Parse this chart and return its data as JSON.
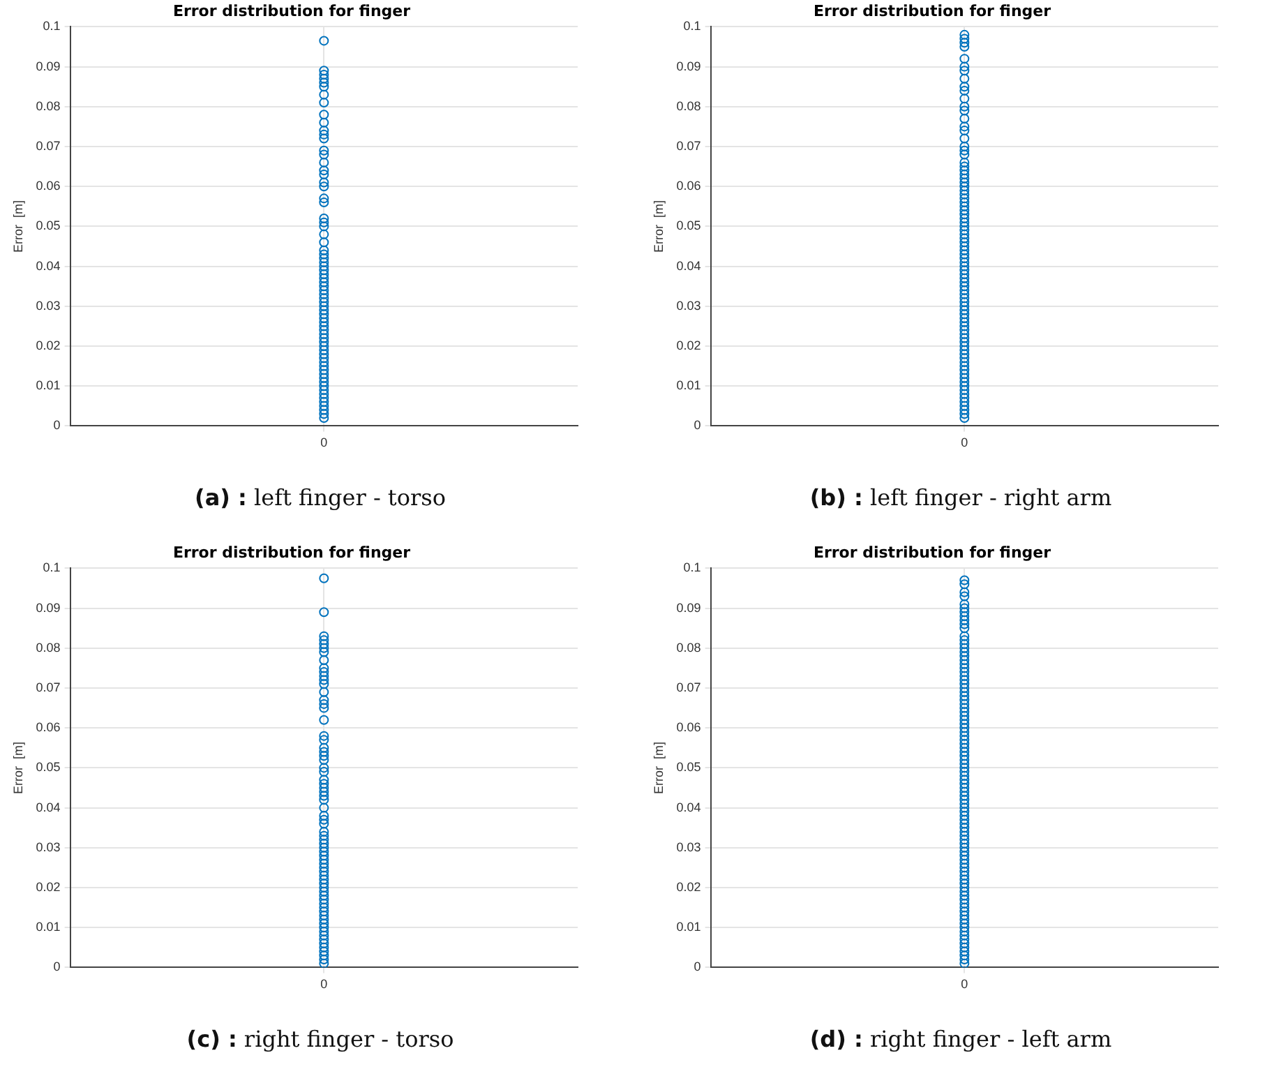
{
  "chart_data": [
    {
      "type": "scatter",
      "title": "Error distribution for finger",
      "ylabel": "Error  [m]",
      "categories": [
        "0"
      ],
      "ylim": [
        0,
        0.1
      ],
      "yticks": [
        0,
        0.01,
        0.02,
        0.03,
        0.04,
        0.05,
        0.06,
        0.07,
        0.08,
        0.09,
        0.1
      ],
      "grid": true,
      "marker": "circle",
      "annotations": [
        "(a) : left finger - torso"
      ],
      "series": [
        {
          "color": "#0072bd",
          "x": [
            "0",
            "0",
            "0",
            "0",
            "0",
            "0",
            "0",
            "0",
            "0",
            "0",
            "0",
            "0",
            "0",
            "0",
            "0",
            "0",
            "0",
            "0",
            "0",
            "0",
            "0",
            "0",
            "0",
            "0",
            "0",
            "0",
            "0",
            "0",
            "0",
            "0",
            "0",
            "0",
            "0",
            "0",
            "0",
            "0",
            "0",
            "0",
            "0",
            "0",
            "0",
            "0",
            "0",
            "0",
            "0",
            "0",
            "0",
            "0",
            "0",
            "0",
            "0",
            "0",
            "0",
            "0",
            "0",
            "0",
            "0",
            "0",
            "0",
            "0",
            "0",
            "0",
            "0",
            "0",
            "0",
            "0",
            "0",
            "0",
            "0",
            "0"
          ],
          "values": [
            0.0965,
            0.089,
            0.088,
            0.087,
            0.086,
            0.085,
            0.083,
            0.081,
            0.078,
            0.076,
            0.074,
            0.073,
            0.072,
            0.069,
            0.068,
            0.066,
            0.064,
            0.063,
            0.061,
            0.06,
            0.057,
            0.056,
            0.052,
            0.051,
            0.05,
            0.048,
            0.046,
            0.044,
            0.043,
            0.042,
            0.041,
            0.04,
            0.039,
            0.038,
            0.037,
            0.036,
            0.035,
            0.034,
            0.033,
            0.032,
            0.031,
            0.03,
            0.029,
            0.028,
            0.027,
            0.026,
            0.025,
            0.024,
            0.023,
            0.022,
            0.021,
            0.02,
            0.019,
            0.018,
            0.017,
            0.016,
            0.015,
            0.014,
            0.013,
            0.012,
            0.011,
            0.01,
            0.009,
            0.008,
            0.007,
            0.006,
            0.005,
            0.004,
            0.003,
            0.002
          ]
        }
      ]
    },
    {
      "type": "scatter",
      "title": "Error distribution for finger",
      "ylabel": "Error  [m]",
      "categories": [
        "0"
      ],
      "ylim": [
        0,
        0.1
      ],
      "yticks": [
        0,
        0.01,
        0.02,
        0.03,
        0.04,
        0.05,
        0.06,
        0.07,
        0.08,
        0.09,
        0.1
      ],
      "grid": true,
      "marker": "circle",
      "annotations": [
        "(b) : left finger - right arm"
      ],
      "series": [
        {
          "color": "#0072bd",
          "x": [
            "0",
            "0",
            "0",
            "0",
            "0",
            "0",
            "0",
            "0",
            "0",
            "0",
            "0",
            "0",
            "0",
            "0",
            "0",
            "0",
            "0",
            "0",
            "0",
            "0",
            "0",
            "0",
            "0",
            "0",
            "0",
            "0",
            "0",
            "0",
            "0",
            "0",
            "0",
            "0",
            "0",
            "0",
            "0",
            "0",
            "0",
            "0",
            "0",
            "0",
            "0",
            "0",
            "0",
            "0",
            "0",
            "0",
            "0",
            "0",
            "0",
            "0",
            "0",
            "0",
            "0",
            "0",
            "0",
            "0",
            "0",
            "0",
            "0",
            "0",
            "0",
            "0",
            "0",
            "0",
            "0",
            "0",
            "0",
            "0",
            "0",
            "0",
            "0",
            "0",
            "0",
            "0",
            "0",
            "0",
            "0",
            "0",
            "0",
            "0",
            "0",
            "0",
            "0",
            "0",
            "0"
          ],
          "values": [
            0.098,
            0.097,
            0.096,
            0.095,
            0.092,
            0.09,
            0.089,
            0.087,
            0.085,
            0.084,
            0.082,
            0.08,
            0.079,
            0.077,
            0.075,
            0.074,
            0.072,
            0.07,
            0.069,
            0.068,
            0.066,
            0.065,
            0.064,
            0.063,
            0.062,
            0.061,
            0.06,
            0.059,
            0.058,
            0.057,
            0.056,
            0.055,
            0.054,
            0.053,
            0.052,
            0.051,
            0.05,
            0.049,
            0.048,
            0.047,
            0.046,
            0.045,
            0.044,
            0.043,
            0.042,
            0.041,
            0.04,
            0.039,
            0.038,
            0.037,
            0.036,
            0.035,
            0.034,
            0.033,
            0.032,
            0.031,
            0.03,
            0.029,
            0.028,
            0.027,
            0.026,
            0.025,
            0.024,
            0.023,
            0.022,
            0.021,
            0.02,
            0.019,
            0.018,
            0.017,
            0.016,
            0.015,
            0.014,
            0.013,
            0.012,
            0.011,
            0.01,
            0.009,
            0.008,
            0.007,
            0.006,
            0.005,
            0.004,
            0.003,
            0.002
          ]
        }
      ]
    },
    {
      "type": "scatter",
      "title": "Error distribution for finger",
      "ylabel": "Error  [m]",
      "categories": [
        "0"
      ],
      "ylim": [
        0,
        0.1
      ],
      "yticks": [
        0,
        0.01,
        0.02,
        0.03,
        0.04,
        0.05,
        0.06,
        0.07,
        0.08,
        0.09,
        0.1
      ],
      "grid": true,
      "marker": "circle",
      "annotations": [
        "(c) : right finger - torso"
      ],
      "series": [
        {
          "color": "#0072bd",
          "x": [
            "0",
            "0",
            "0",
            "0",
            "0",
            "0",
            "0",
            "0",
            "0",
            "0",
            "0",
            "0",
            "0",
            "0",
            "0",
            "0",
            "0",
            "0",
            "0",
            "0",
            "0",
            "0",
            "0",
            "0",
            "0",
            "0",
            "0",
            "0",
            "0",
            "0",
            "0",
            "0",
            "0",
            "0",
            "0",
            "0",
            "0",
            "0",
            "0",
            "0",
            "0",
            "0",
            "0",
            "0",
            "0",
            "0",
            "0",
            "0",
            "0",
            "0",
            "0",
            "0",
            "0",
            "0",
            "0",
            "0",
            "0",
            "0",
            "0",
            "0",
            "0",
            "0",
            "0",
            "0",
            "0",
            "0",
            "0",
            "0",
            "0",
            "0"
          ],
          "values": [
            0.0975,
            0.089,
            0.083,
            0.082,
            0.081,
            0.08,
            0.079,
            0.077,
            0.075,
            0.074,
            0.073,
            0.072,
            0.071,
            0.069,
            0.067,
            0.066,
            0.065,
            0.062,
            0.058,
            0.057,
            0.055,
            0.054,
            0.053,
            0.052,
            0.05,
            0.049,
            0.047,
            0.046,
            0.045,
            0.044,
            0.043,
            0.042,
            0.04,
            0.038,
            0.037,
            0.036,
            0.034,
            0.033,
            0.032,
            0.031,
            0.03,
            0.029,
            0.028,
            0.027,
            0.026,
            0.025,
            0.024,
            0.023,
            0.022,
            0.021,
            0.02,
            0.019,
            0.018,
            0.017,
            0.016,
            0.015,
            0.014,
            0.013,
            0.012,
            0.011,
            0.01,
            0.009,
            0.008,
            0.007,
            0.006,
            0.005,
            0.004,
            0.003,
            0.002,
            0.001
          ]
        }
      ]
    },
    {
      "type": "scatter",
      "title": "Error distribution for finger",
      "ylabel": "Error  [m]",
      "categories": [
        "0"
      ],
      "ylim": [
        0,
        0.1
      ],
      "yticks": [
        0,
        0.01,
        0.02,
        0.03,
        0.04,
        0.05,
        0.06,
        0.07,
        0.08,
        0.09,
        0.1
      ],
      "grid": true,
      "marker": "circle",
      "annotations": [
        "(d) : right finger - left arm"
      ],
      "series": [
        {
          "color": "#0072bd",
          "x": [
            "0",
            "0",
            "0",
            "0",
            "0",
            "0",
            "0",
            "0",
            "0",
            "0",
            "0",
            "0",
            "0",
            "0",
            "0",
            "0",
            "0",
            "0",
            "0",
            "0",
            "0",
            "0",
            "0",
            "0",
            "0",
            "0",
            "0",
            "0",
            "0",
            "0",
            "0",
            "0",
            "0",
            "0",
            "0",
            "0",
            "0",
            "0",
            "0",
            "0",
            "0",
            "0",
            "0",
            "0",
            "0",
            "0",
            "0",
            "0",
            "0",
            "0",
            "0",
            "0",
            "0",
            "0",
            "0",
            "0",
            "0",
            "0",
            "0",
            "0",
            "0",
            "0",
            "0",
            "0",
            "0",
            "0",
            "0",
            "0",
            "0",
            "0",
            "0",
            "0",
            "0",
            "0",
            "0",
            "0",
            "0",
            "0",
            "0",
            "0",
            "0",
            "0",
            "0",
            "0",
            "0",
            "0",
            "0",
            "0",
            "0",
            "0",
            "0",
            "0",
            "0",
            "0"
          ],
          "values": [
            0.097,
            0.096,
            0.094,
            0.093,
            0.091,
            0.09,
            0.089,
            0.088,
            0.087,
            0.086,
            0.085,
            0.083,
            0.082,
            0.081,
            0.08,
            0.079,
            0.078,
            0.077,
            0.076,
            0.075,
            0.074,
            0.073,
            0.072,
            0.071,
            0.07,
            0.069,
            0.068,
            0.067,
            0.066,
            0.065,
            0.064,
            0.063,
            0.062,
            0.061,
            0.06,
            0.059,
            0.058,
            0.057,
            0.056,
            0.055,
            0.054,
            0.053,
            0.052,
            0.051,
            0.05,
            0.049,
            0.048,
            0.047,
            0.046,
            0.045,
            0.044,
            0.043,
            0.042,
            0.041,
            0.04,
            0.039,
            0.038,
            0.037,
            0.036,
            0.035,
            0.034,
            0.033,
            0.032,
            0.031,
            0.03,
            0.029,
            0.028,
            0.027,
            0.026,
            0.025,
            0.024,
            0.023,
            0.022,
            0.021,
            0.02,
            0.019,
            0.018,
            0.017,
            0.016,
            0.015,
            0.014,
            0.013,
            0.012,
            0.011,
            0.01,
            0.009,
            0.008,
            0.007,
            0.006,
            0.005,
            0.004,
            0.003,
            0.002,
            0.001
          ]
        }
      ]
    }
  ]
}
